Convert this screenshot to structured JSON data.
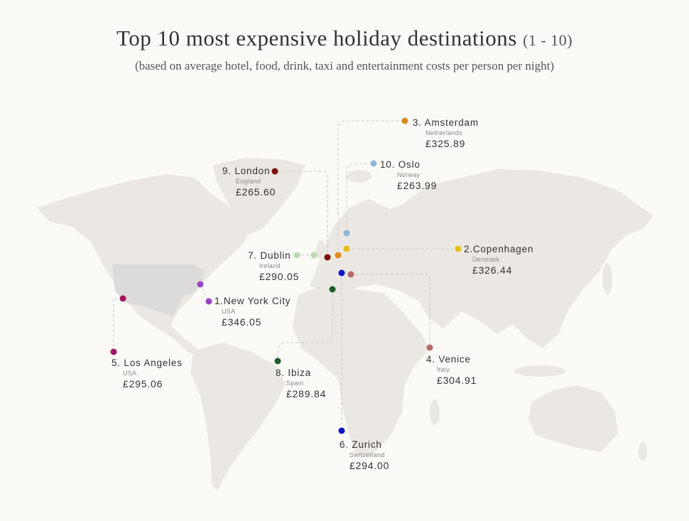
{
  "title": "Top 10 most expensive holiday destinations",
  "title_range": "(1 - 10)",
  "subtitle": "(based on average hotel, food, drink, taxi and entertainment costs per person per night)",
  "colors": {
    "background": "#fcfaf6",
    "land": "#ebe8e3",
    "highlight_country": "#dcdbd9",
    "leader_line": "#c8c8c8"
  },
  "destinations": [
    {
      "rank": 1,
      "label": "1.New York City",
      "country": "USA",
      "price": "£346.05",
      "color": "#9b44c8"
    },
    {
      "rank": 2,
      "label": "2.Copenhagen",
      "country": "Denmark",
      "price": "£326.44",
      "color": "#e2c11e"
    },
    {
      "rank": 3,
      "label": "3. Amsterdam",
      "country": "Netherlands",
      "price": "£325.89",
      "color": "#e08a1c"
    },
    {
      "rank": 4,
      "label": "4. Venice",
      "country": "Italy",
      "price": "£304.91",
      "color": "#b86a6a"
    },
    {
      "rank": 5,
      "label": "5. Los Angeles",
      "country": "USA",
      "price": "£295.06",
      "color": "#a3155e"
    },
    {
      "rank": 6,
      "label": "6. Zurich",
      "country": "Switzerland",
      "price": "£294.00",
      "color": "#0a14c8"
    },
    {
      "rank": 7,
      "label": "7. Dublin",
      "country": "Ireland",
      "price": "£290.05",
      "color": "#b9d9b0"
    },
    {
      "rank": 8,
      "label": "8. Ibiza",
      "country": "Spain",
      "price": "£289.84",
      "color": "#1d5e2a"
    },
    {
      "rank": 9,
      "label": "9. London",
      "country": "England",
      "price": "£265.60",
      "color": "#7a0f0a"
    },
    {
      "rank": 10,
      "label": "10. Oslo",
      "country": "Norway",
      "price": "£263.99",
      "color": "#8fb6d6"
    }
  ]
}
